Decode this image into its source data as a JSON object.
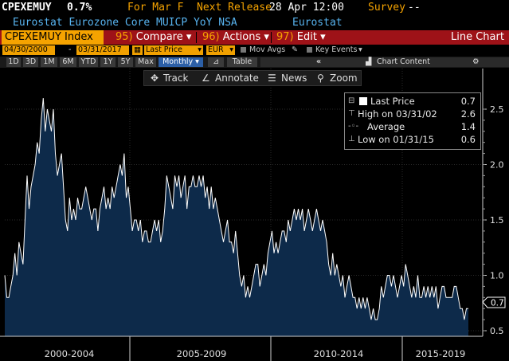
{
  "header": {
    "ticker": "CPEXEMUY",
    "last_value": "0.7%",
    "for_label": "For Mar F",
    "next_release_label": "Next Release",
    "next_release_value": "28 Apr 12:00",
    "survey_label": "Survey",
    "survey_value": "--"
  },
  "subheader": {
    "description": "Eurostat Eurozone Core MUICP YoY NSA",
    "source": "Eurostat"
  },
  "function_bar": {
    "security": "CPEXEMUY Index",
    "compare_num": "95)",
    "compare_label": "Compare",
    "actions_num": "96)",
    "actions_label": "Actions",
    "edit_num": "97)",
    "edit_label": "Edit",
    "title": "Line Chart"
  },
  "controls": {
    "start_date": "04/30/2000",
    "dash": "-",
    "end_date": "03/31/2017",
    "field": "Last Price",
    "currency": "EUR",
    "mov_avgs": "Mov Avgs",
    "key_events": "Key Events"
  },
  "range_bar": {
    "buttons": [
      "1D",
      "3D",
      "1M",
      "6M",
      "YTD",
      "1Y",
      "5Y",
      "Max"
    ],
    "frequency": "Monthly",
    "table": "Table",
    "chart_content": "Chart Content"
  },
  "toolbar": {
    "track": "Track",
    "annotate": "Annotate",
    "news": "News",
    "zoom": "Zoom"
  },
  "legend": {
    "last_price_label": "Last Price",
    "last_price_value": "0.7",
    "high_label": "High on 03/31/02",
    "high_value": "2.6",
    "average_label": "Average",
    "average_value": "1.4",
    "low_label": "Low on 01/31/15",
    "low_value": "0.6"
  },
  "colors": {
    "accent_orange": "#f5a300",
    "function_bar_red": "#9e1218",
    "subheader_blue": "#58b4f0",
    "area_fill": "#0d2a4a"
  },
  "chart_data": {
    "type": "area",
    "x_start": "2000-04",
    "x_end": "2017-03",
    "ylim": [
      0.4,
      2.75
    ],
    "yticks": [
      0.5,
      1.0,
      1.5,
      2.0,
      2.5
    ],
    "xlabels": [
      "2000-2004",
      "2005-2009",
      "2010-2014",
      "2015-2019"
    ],
    "last_value_label": "0.7",
    "values": [
      1.0,
      0.8,
      0.8,
      0.9,
      1.0,
      1.2,
      1.0,
      1.3,
      1.2,
      1.1,
      1.5,
      1.9,
      1.6,
      1.8,
      1.9,
      2.0,
      2.2,
      2.1,
      2.4,
      2.6,
      2.3,
      2.5,
      2.4,
      2.3,
      2.5,
      2.1,
      1.9,
      2.0,
      2.1,
      1.8,
      1.5,
      1.4,
      1.7,
      1.5,
      1.6,
      1.5,
      1.7,
      1.6,
      1.6,
      1.7,
      1.8,
      1.7,
      1.6,
      1.5,
      1.6,
      1.6,
      1.4,
      1.6,
      1.7,
      1.8,
      1.6,
      1.7,
      1.6,
      1.8,
      1.7,
      1.8,
      1.9,
      2.0,
      1.9,
      2.1,
      1.7,
      1.8,
      1.6,
      1.4,
      1.5,
      1.5,
      1.4,
      1.5,
      1.3,
      1.4,
      1.4,
      1.3,
      1.3,
      1.4,
      1.5,
      1.4,
      1.5,
      1.3,
      1.4,
      1.6,
      1.9,
      1.8,
      1.7,
      1.6,
      1.9,
      1.8,
      1.9,
      1.7,
      1.8,
      1.9,
      1.6,
      1.8,
      1.8,
      1.9,
      1.8,
      1.8,
      1.9,
      1.8,
      1.9,
      1.7,
      1.8,
      1.6,
      1.8,
      1.6,
      1.7,
      1.6,
      1.5,
      1.4,
      1.3,
      1.4,
      1.5,
      1.3,
      1.3,
      1.2,
      1.4,
      1.2,
      1.0,
      0.9,
      1.0,
      0.8,
      0.9,
      0.8,
      0.9,
      1.0,
      1.1,
      1.1,
      0.9,
      1.0,
      1.1,
      1.0,
      1.2,
      1.3,
      1.4,
      1.2,
      1.3,
      1.2,
      1.3,
      1.4,
      1.4,
      1.3,
      1.5,
      1.4,
      1.5,
      1.6,
      1.5,
      1.6,
      1.5,
      1.6,
      1.4,
      1.5,
      1.6,
      1.5,
      1.4,
      1.5,
      1.6,
      1.5,
      1.4,
      1.5,
      1.4,
      1.3,
      1.1,
      1.0,
      1.2,
      1.0,
      1.1,
      1.0,
      0.9,
      1.0,
      0.8,
      0.9,
      1.0,
      0.9,
      0.8,
      0.8,
      0.7,
      0.8,
      0.7,
      0.8,
      0.7,
      0.8,
      0.7,
      0.6,
      0.7,
      0.6,
      0.6,
      0.7,
      0.9,
      0.8,
      0.9,
      1.0,
      1.0,
      0.9,
      1.0,
      0.9,
      0.8,
      0.9,
      1.0,
      0.9,
      1.1,
      1.0,
      0.9,
      0.8,
      0.9,
      0.8,
      1.0,
      0.8,
      0.8,
      0.9,
      0.8,
      0.9,
      0.8,
      0.9,
      0.8,
      0.9,
      0.7,
      0.8,
      0.9,
      0.9,
      0.8,
      0.8,
      0.8,
      0.8,
      0.9,
      0.9,
      0.8,
      0.7,
      0.7,
      0.6,
      0.7,
      0.7
    ]
  }
}
